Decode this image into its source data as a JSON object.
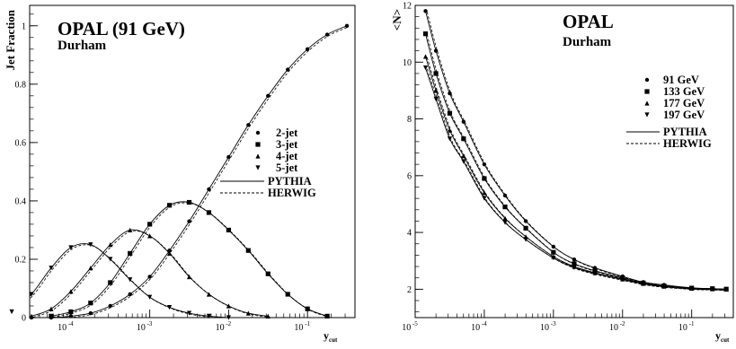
{
  "chart_data": [
    {
      "type": "line",
      "title": "OPAL (91 GeV)",
      "subtitle": "Durham",
      "xlabel": "y_cut",
      "ylabel": "Jet Fraction",
      "xscale": "log",
      "xlim": [
        3e-05,
        0.4
      ],
      "ylim": [
        0,
        1.07
      ],
      "yticks": [
        "0",
        "0.2",
        "0.4",
        "0.6",
        "0.8",
        "1"
      ],
      "xticks": [
        "10^-4",
        "10^-3",
        "10^-2",
        "10^-1"
      ],
      "legend_position": "right-middle",
      "grid": false,
      "series": [
        {
          "name": "2-jet",
          "marker": "circle",
          "logx": [
            -4.5,
            -4.25,
            -4.0,
            -3.75,
            -3.5,
            -3.25,
            -3.0,
            -2.75,
            -2.5,
            -2.25,
            -2.0,
            -1.75,
            -1.5,
            -1.25,
            -1.0,
            -0.75,
            -0.5
          ],
          "values": [
            0.0,
            0.0,
            0.005,
            0.015,
            0.04,
            0.08,
            0.14,
            0.23,
            0.33,
            0.44,
            0.55,
            0.66,
            0.76,
            0.85,
            0.92,
            0.97,
            1.0
          ]
        },
        {
          "name": "3-jet",
          "marker": "square",
          "logx": [
            -4.25,
            -4.0,
            -3.75,
            -3.5,
            -3.25,
            -3.0,
            -2.75,
            -2.5,
            -2.25,
            -2.0,
            -1.75,
            -1.5,
            -1.25,
            -1.0,
            -0.75
          ],
          "values": [
            0.005,
            0.02,
            0.05,
            0.12,
            0.22,
            0.32,
            0.385,
            0.395,
            0.36,
            0.3,
            0.23,
            0.15,
            0.08,
            0.03,
            0.005
          ]
        },
        {
          "name": "4-jet",
          "marker": "triangle",
          "logx": [
            -4.5,
            -4.25,
            -4.0,
            -3.75,
            -3.5,
            -3.25,
            -3.0,
            -2.75,
            -2.5,
            -2.25,
            -2.0,
            -1.75,
            -1.5
          ],
          "values": [
            0.005,
            0.03,
            0.09,
            0.17,
            0.25,
            0.3,
            0.28,
            0.22,
            0.14,
            0.08,
            0.04,
            0.015,
            0.005
          ]
        },
        {
          "name": "5-jet",
          "marker": "triangle-down",
          "logx": [
            -4.75,
            -4.5,
            -4.25,
            -4.0,
            -3.75,
            -3.5,
            -3.25,
            -3.0,
            -2.75,
            -2.5,
            -2.25,
            -2.0
          ],
          "values": [
            0.02,
            0.08,
            0.17,
            0.24,
            0.25,
            0.2,
            0.13,
            0.07,
            0.035,
            0.015,
            0.005,
            0.0
          ]
        },
        {
          "name": "PYTHIA",
          "style": "solid"
        },
        {
          "name": "HERWIG",
          "style": "dashed"
        }
      ]
    },
    {
      "type": "line",
      "title": "OPAL",
      "subtitle": "Durham",
      "xlabel": "y_cut",
      "ylabel": "<N>",
      "xscale": "log",
      "xlim": [
        1e-05,
        0.4
      ],
      "ylim": [
        1.0,
        12
      ],
      "yticks": [
        "2",
        "4",
        "6",
        "8",
        "10",
        "12"
      ],
      "xticks": [
        "10^-5",
        "10^-4",
        "10^-3",
        "10^-2",
        "10^-1"
      ],
      "legend_position": "right-top",
      "grid": false,
      "series": [
        {
          "name": "91 GeV",
          "marker": "circle",
          "logx": [
            -4.85,
            -4.7,
            -4.5,
            -4.3,
            -4.0,
            -3.7,
            -3.4,
            -3.0,
            -2.7,
            -2.4,
            -2.0,
            -1.7,
            -1.4,
            -1.0,
            -0.7,
            -0.5
          ],
          "values": [
            11.8,
            10.4,
            8.9,
            7.9,
            6.4,
            5.3,
            4.4,
            3.5,
            3.05,
            2.75,
            2.45,
            2.25,
            2.15,
            2.05,
            2.02,
            2.0
          ]
        },
        {
          "name": "133 GeV",
          "marker": "square",
          "logx": [
            -4.85,
            -4.7,
            -4.5,
            -4.3,
            -4.0,
            -3.7,
            -3.4,
            -3.0,
            -2.7,
            -2.4,
            -2.0,
            -1.7,
            -1.4,
            -1.0,
            -0.7,
            -0.5
          ],
          "values": [
            11.0,
            9.6,
            8.2,
            7.3,
            5.9,
            4.9,
            4.15,
            3.3,
            2.9,
            2.65,
            2.4,
            2.22,
            2.12,
            2.04,
            2.02,
            2.0
          ]
        },
        {
          "name": "177 GeV",
          "marker": "triangle",
          "logx": [
            -4.85,
            -4.7,
            -4.5,
            -4.3,
            -4.0,
            -3.7,
            -3.4,
            -3.0,
            -2.7,
            -2.4,
            -2.0,
            -1.7,
            -1.4,
            -1.0,
            -0.7,
            -0.5
          ],
          "values": [
            10.2,
            9.0,
            7.6,
            6.7,
            5.4,
            4.5,
            3.85,
            3.15,
            2.8,
            2.58,
            2.36,
            2.2,
            2.1,
            2.03,
            2.01,
            2.0
          ]
        },
        {
          "name": "197 GeV",
          "marker": "triangle-down",
          "logx": [
            -4.85,
            -4.7,
            -4.5,
            -4.3,
            -4.0,
            -3.7,
            -3.4,
            -3.0,
            -2.7,
            -2.4,
            -2.0,
            -1.7,
            -1.4,
            -1.0,
            -0.7,
            -0.5
          ],
          "values": [
            9.8,
            8.7,
            7.3,
            6.5,
            5.2,
            4.35,
            3.75,
            3.1,
            2.76,
            2.55,
            2.34,
            2.19,
            2.1,
            2.03,
            2.01,
            2.0
          ]
        },
        {
          "name": "PYTHIA",
          "style": "solid"
        },
        {
          "name": "HERWIG",
          "style": "dashed"
        }
      ]
    }
  ]
}
